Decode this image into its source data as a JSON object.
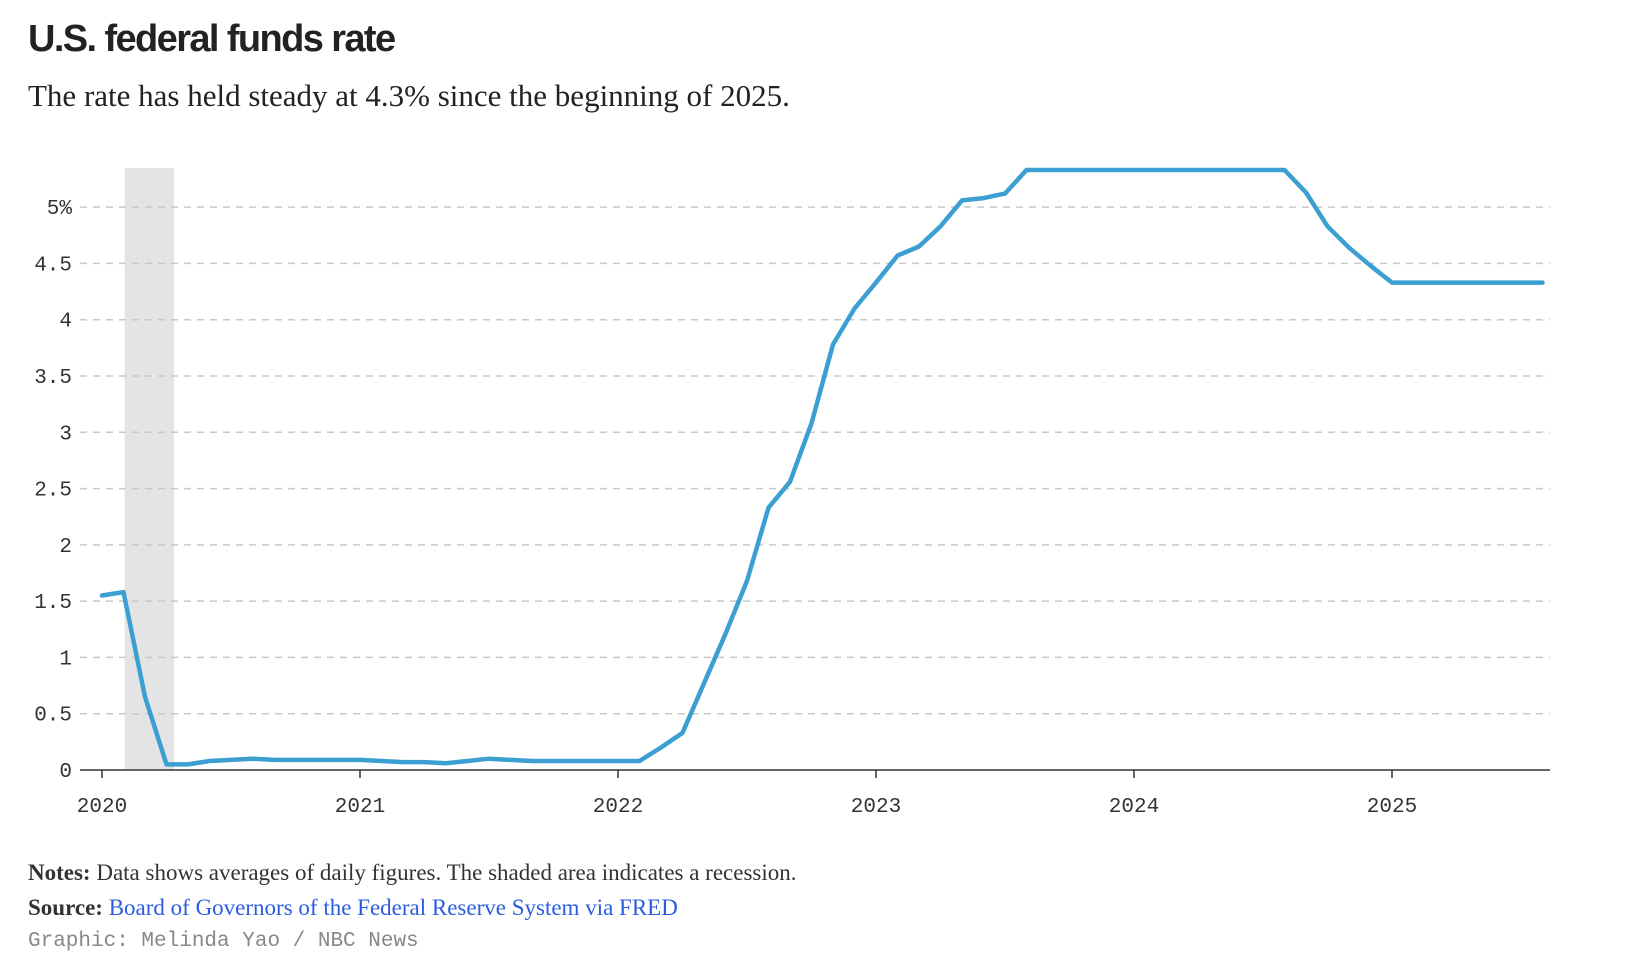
{
  "title": "U.S. federal funds rate",
  "subtitle": "The rate has held steady at 4.3% since the beginning of 2025.",
  "notes_label": "Notes:",
  "notes_text": "Data shows averages of daily figures. The shaded area indicates a recession.",
  "source_label": "Source:",
  "source_text": "Board of Governors of the Federal Reserve System via FRED",
  "credit": "Graphic: Melinda Yao / NBC News",
  "colors": {
    "line": "#3c9fd1",
    "recession_shade": "#e4e4e4",
    "grid": "#c8c8c8",
    "axis": "#333333",
    "link": "#2b5ce0"
  },
  "chart_data": {
    "type": "line",
    "title": "U.S. federal funds rate",
    "xlabel": "",
    "ylabel": "",
    "x_ticks": [
      "2020",
      "2021",
      "2022",
      "2023",
      "2024",
      "2025"
    ],
    "y_ticks": [
      {
        "value": 0,
        "label": "0"
      },
      {
        "value": 0.5,
        "label": "0.5"
      },
      {
        "value": 1,
        "label": "1"
      },
      {
        "value": 1.5,
        "label": "1.5"
      },
      {
        "value": 2,
        "label": "2"
      },
      {
        "value": 2.5,
        "label": "2.5"
      },
      {
        "value": 3,
        "label": "3"
      },
      {
        "value": 3.5,
        "label": "3.5"
      },
      {
        "value": 4,
        "label": "4"
      },
      {
        "value": 4.5,
        "label": "4.5"
      },
      {
        "value": 5,
        "label": "5%"
      }
    ],
    "xlim": [
      "2020-01",
      "2025-08"
    ],
    "ylim": [
      0,
      5.33
    ],
    "grid": "horizontal dashed",
    "recession": {
      "start": "2020-02",
      "end": "2020-04"
    },
    "series": [
      {
        "x": [
          "2020-01",
          "2020-02",
          "2020-03",
          "2020-04",
          "2020-05",
          "2020-06",
          "2020-07",
          "2020-08",
          "2020-09",
          "2020-10",
          "2020-11",
          "2020-12",
          "2021-01",
          "2021-02",
          "2021-03",
          "2021-04",
          "2021-05",
          "2021-06",
          "2021-07",
          "2021-08",
          "2021-09",
          "2021-10",
          "2021-11",
          "2021-12",
          "2022-01",
          "2022-02",
          "2022-03",
          "2022-04",
          "2022-05",
          "2022-06",
          "2022-07",
          "2022-08",
          "2022-09",
          "2022-10",
          "2022-11",
          "2022-12",
          "2023-01",
          "2023-02",
          "2023-03",
          "2023-04",
          "2023-05",
          "2023-06",
          "2023-07",
          "2023-08",
          "2023-09",
          "2023-10",
          "2023-11",
          "2023-12",
          "2024-01",
          "2024-02",
          "2024-03",
          "2024-04",
          "2024-05",
          "2024-06",
          "2024-07",
          "2024-08",
          "2024-09",
          "2024-10",
          "2024-11",
          "2024-12",
          "2025-01",
          "2025-02",
          "2025-03",
          "2025-04",
          "2025-05",
          "2025-06",
          "2025-07",
          "2025-08"
        ],
        "values": [
          1.55,
          1.58,
          0.65,
          0.05,
          0.05,
          0.08,
          0.09,
          0.1,
          0.09,
          0.09,
          0.09,
          0.09,
          0.09,
          0.08,
          0.07,
          0.07,
          0.06,
          0.08,
          0.1,
          0.09,
          0.08,
          0.08,
          0.08,
          0.08,
          0.08,
          0.08,
          0.2,
          0.33,
          0.77,
          1.21,
          1.68,
          2.33,
          2.56,
          3.08,
          3.78,
          4.1,
          4.33,
          4.57,
          4.65,
          4.83,
          5.06,
          5.08,
          5.12,
          5.33,
          5.33,
          5.33,
          5.33,
          5.33,
          5.33,
          5.33,
          5.33,
          5.33,
          5.33,
          5.33,
          5.33,
          5.33,
          5.13,
          4.83,
          4.64,
          4.48,
          4.33,
          4.33,
          4.33,
          4.33,
          4.33,
          4.33,
          4.33,
          4.33
        ]
      }
    ]
  }
}
